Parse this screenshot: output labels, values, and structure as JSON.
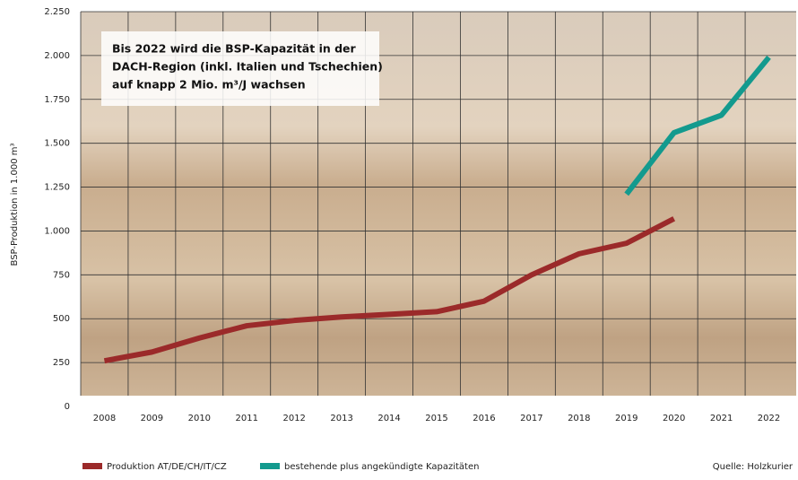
{
  "chart_data": {
    "type": "line",
    "annotation": [
      "Bis 2022 wird die BSP-Kapazität in der",
      "DACH-Region (inkl. Italien und Tschechien)",
      "auf knapp 2 Mio. m³/J wachsen"
    ],
    "y_label": "BSP-Produktion in 1.000 m³",
    "source": "Quelle: Holzkurier",
    "x": [
      2008,
      2009,
      2010,
      2011,
      2012,
      2013,
      2014,
      2015,
      2016,
      2017,
      2018,
      2019,
      2020,
      2021,
      2022
    ],
    "xlim": [
      2007.5,
      2022.5
    ],
    "xticks": [
      2008,
      2009,
      2010,
      2011,
      2012,
      2013,
      2014,
      2015,
      2016,
      2017,
      2018,
      2019,
      2020,
      2021,
      2022
    ],
    "ylim": [
      0,
      2250
    ],
    "yticks": [
      0,
      250,
      500,
      750,
      {
        "value": 1000,
        "label": "1.000"
      },
      {
        "value": 1250,
        "label": "1.250"
      },
      {
        "value": 1500,
        "label": "1.500"
      },
      {
        "value": 1750,
        "label": "1.750"
      },
      {
        "value": 2000,
        "label": "2.000"
      },
      {
        "value": 2250,
        "label": "2.250"
      }
    ],
    "grid": true,
    "series": [
      {
        "name": "Produktion AT/DE/CH/IT/CZ",
        "color": "#9b2a2a",
        "values": [
          260,
          310,
          390,
          460,
          490,
          510,
          525,
          540,
          600,
          750,
          870,
          930,
          1070,
          null,
          null
        ]
      },
      {
        "name": "bestehende plus angekündigte Kapazitäten",
        "color": "#139a8e",
        "values": [
          null,
          null,
          null,
          null,
          null,
          null,
          null,
          null,
          null,
          null,
          null,
          1210,
          1560,
          1660,
          1990
        ]
      }
    ]
  }
}
